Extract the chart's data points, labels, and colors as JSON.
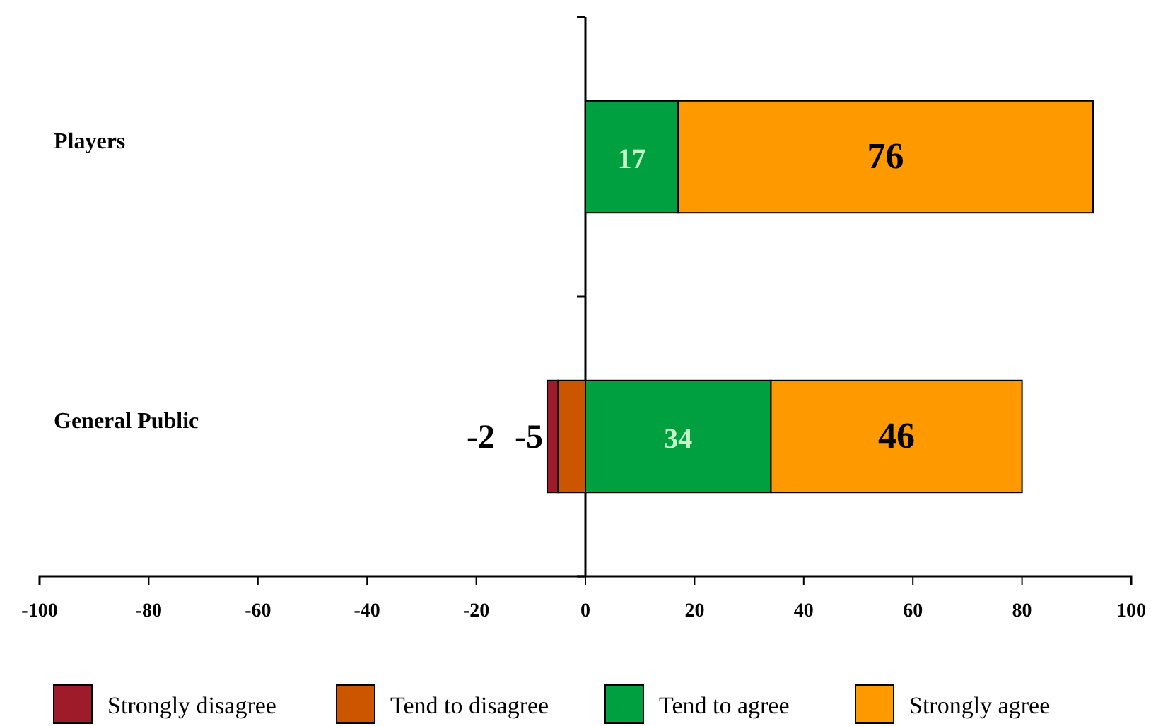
{
  "chart_data": {
    "type": "bar",
    "orientation": "horizontal",
    "stacked": true,
    "categories": [
      "Players",
      "General Public"
    ],
    "series": [
      {
        "name": "Tend to disagree",
        "color": "#cc5500",
        "values": [
          null,
          -5
        ]
      },
      {
        "name": "Strongly disagree",
        "color": "#9e1b2a",
        "values": [
          null,
          -2
        ]
      },
      {
        "name": "Tend to agree",
        "color": "#00a040",
        "values": [
          17,
          34
        ]
      },
      {
        "name": "Strongly agree",
        "color": "#ff9900",
        "values": [
          76,
          46
        ]
      }
    ],
    "xlim": [
      -100,
      100
    ],
    "xticks": [
      -100,
      -80,
      -60,
      -40,
      -20,
      0,
      20,
      40,
      60,
      80,
      100
    ],
    "data_labels": true,
    "legend": "bottom"
  }
}
